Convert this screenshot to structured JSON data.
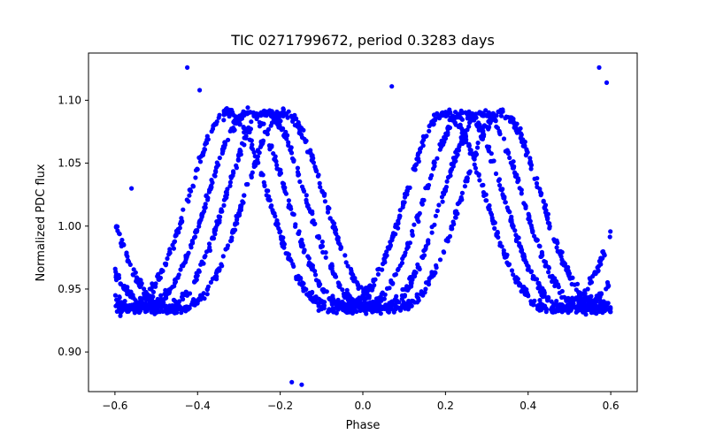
{
  "chart_data": {
    "type": "scatter",
    "title": "TIC 0271799672, period 0.3283 days",
    "xlabel": "Phase",
    "ylabel": "Normalized PDC flux",
    "xlim": [
      -0.664,
      0.664
    ],
    "ylim": [
      0.8685,
      1.1375
    ],
    "x_ticks": [
      -0.6,
      -0.4,
      -0.2,
      0.0,
      0.2,
      0.4,
      0.6
    ],
    "x_tick_labels": [
      "−0.6",
      "−0.4",
      "−0.2",
      "0.0",
      "0.2",
      "0.4",
      "0.6"
    ],
    "y_ticks": [
      0.9,
      0.95,
      1.0,
      1.05,
      1.1
    ],
    "y_tick_labels": [
      "0.90",
      "0.95",
      "1.00",
      "1.05",
      "1.10"
    ],
    "grid": false,
    "legend": "none",
    "series": [
      {
        "color": "#0000ff",
        "marker": "circle",
        "x_range": [
          -0.6,
          0.6
        ],
        "trend": "four interleaved sinusoidal bands with maxima near phase -0.33 and 0.2 and minima near -0.6, -0.09 and 0.42; amplitude about 0.08",
        "band_offsets_phase": [
          0.0,
          0.045,
          0.09,
          0.135
        ],
        "outliers": [
          {
            "x": -0.425,
            "y": 1.126
          },
          {
            "x": 0.572,
            "y": 1.126
          },
          {
            "x": 0.07,
            "y": 1.111
          },
          {
            "x": -0.148,
            "y": 0.874
          },
          {
            "x": -0.172,
            "y": 0.876
          },
          {
            "x": 0.59,
            "y": 1.114
          },
          {
            "x": -0.395,
            "y": 1.108
          },
          {
            "x": -0.56,
            "y": 1.03
          }
        ]
      }
    ]
  }
}
